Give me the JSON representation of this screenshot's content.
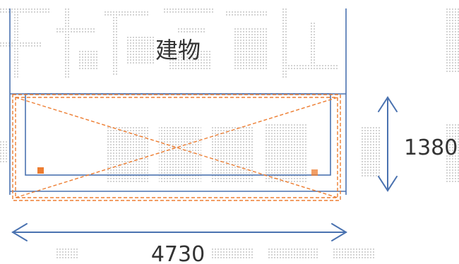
{
  "diagram": {
    "building_label": "建物",
    "height_dimension": "1380",
    "width_dimension": "4730",
    "colors": {
      "wall_line": "#4a72b0",
      "marker": "#ed7d31",
      "arrow": "#4a72b0",
      "watermark": "#d5d5d5"
    }
  }
}
